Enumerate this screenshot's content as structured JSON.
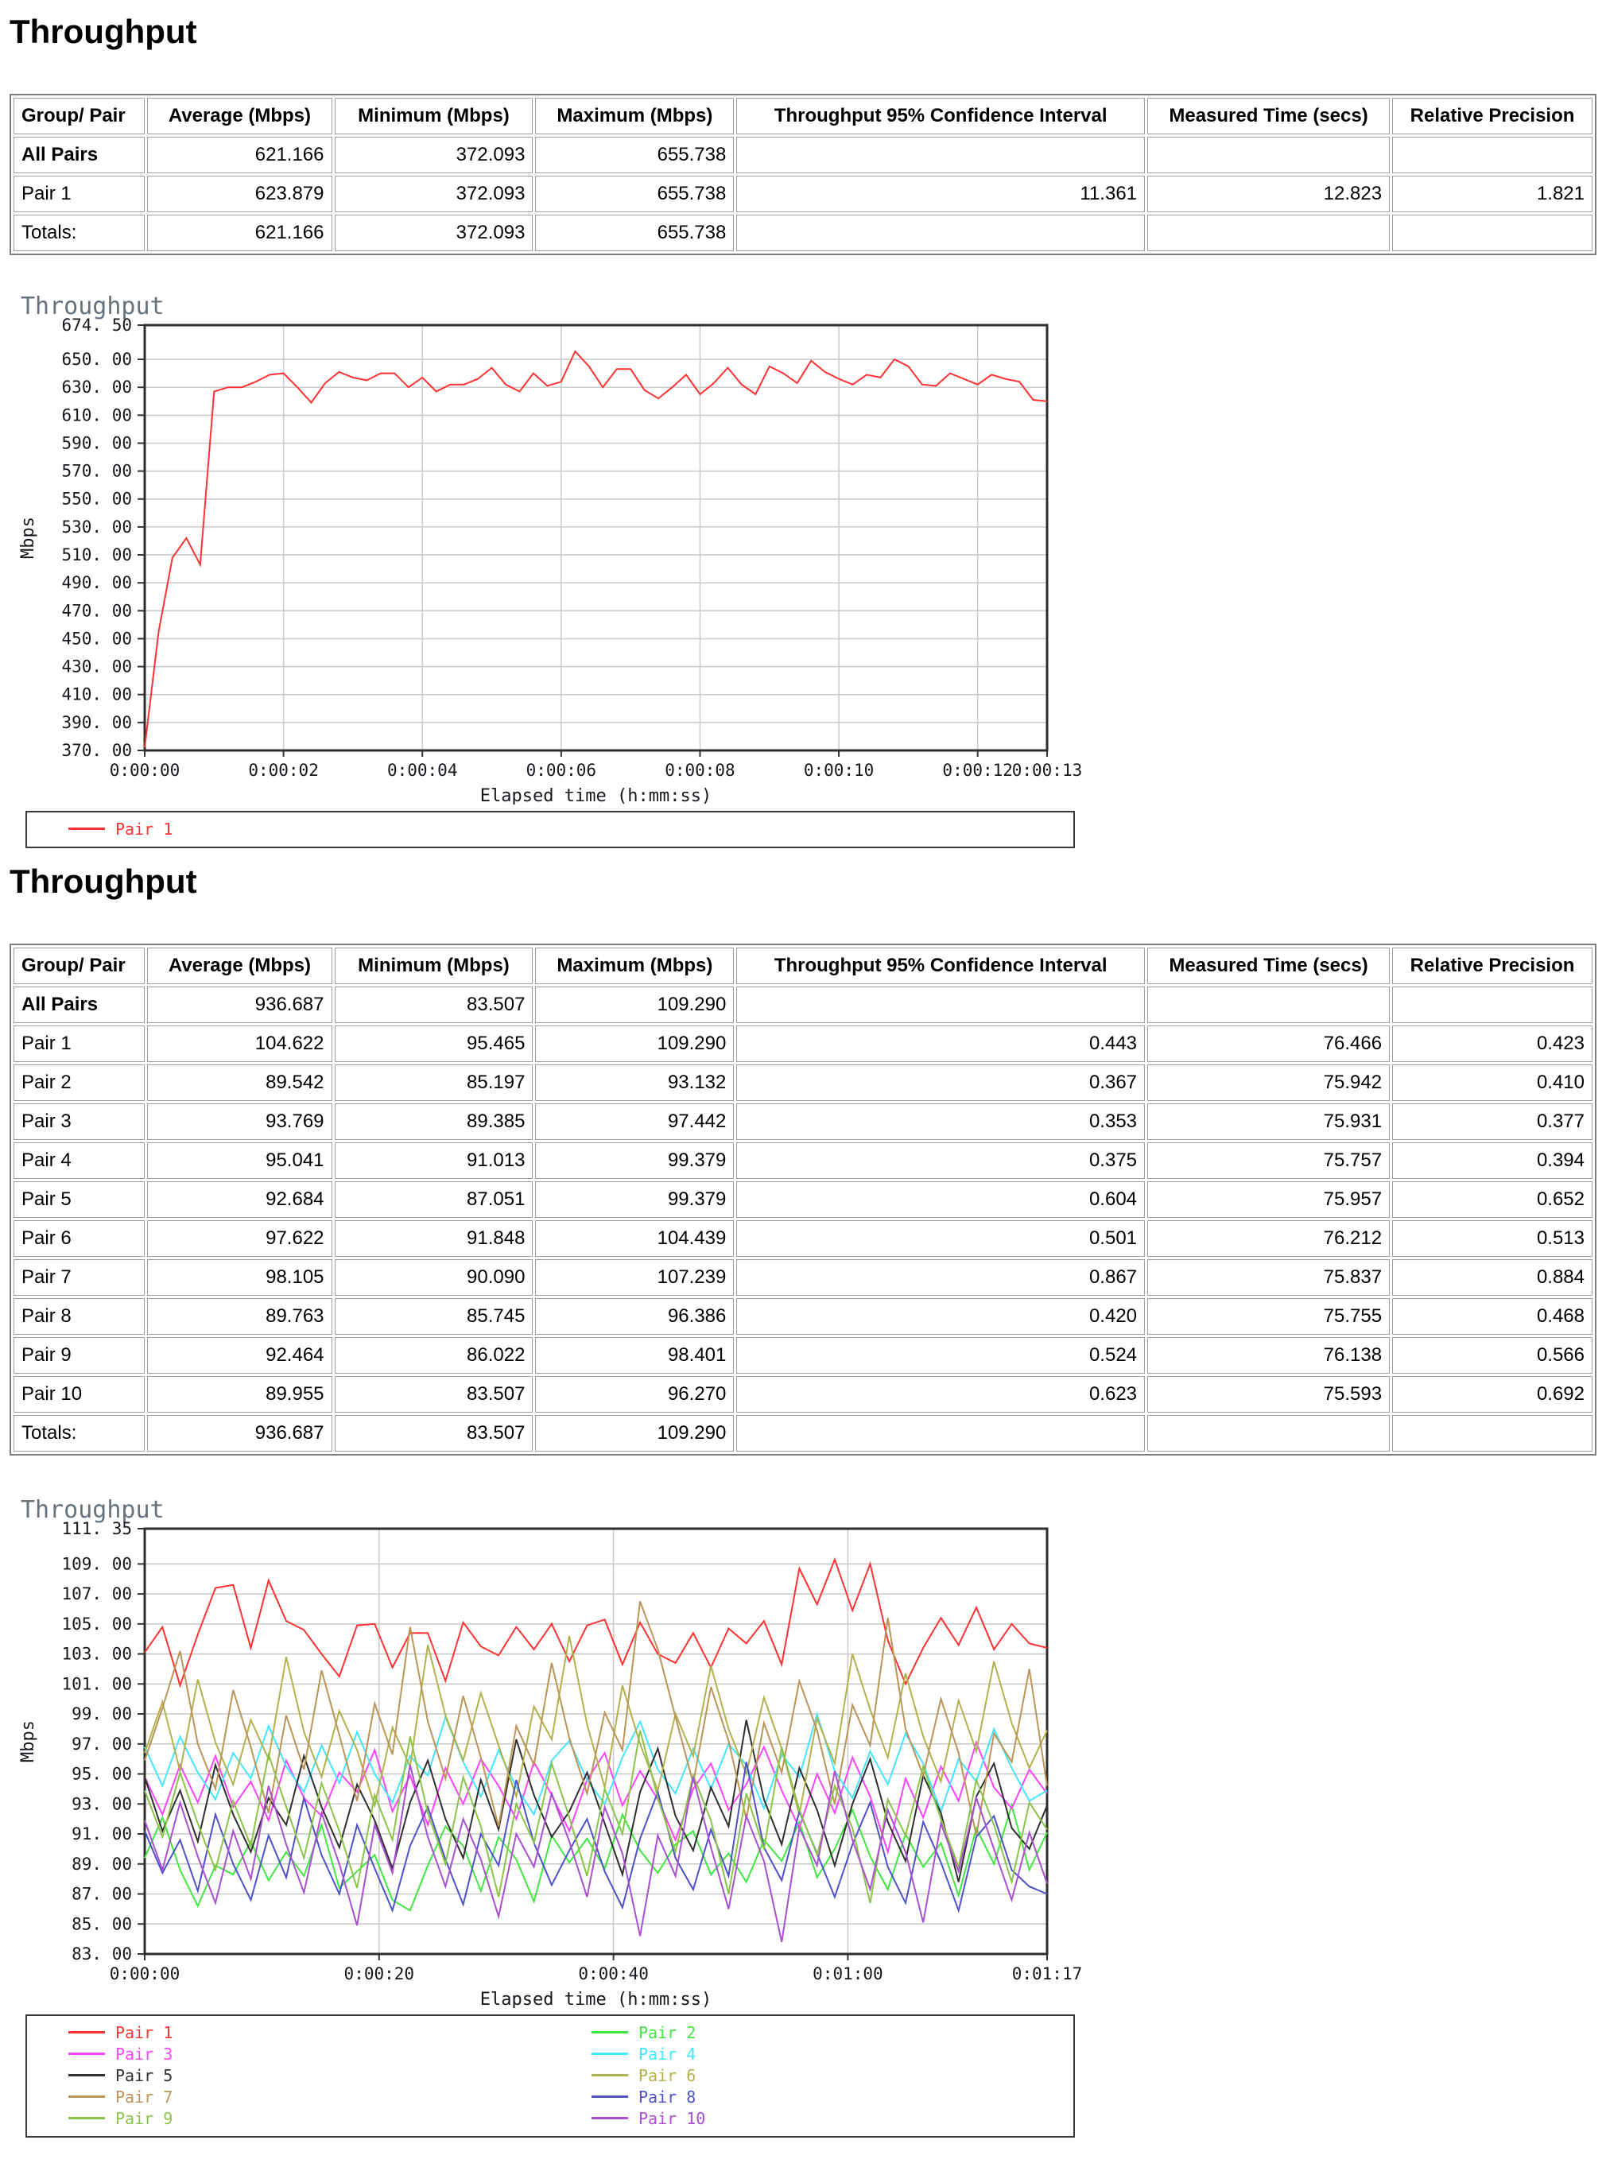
{
  "headings": {
    "section1": "Throughput",
    "section2": "Throughput"
  },
  "table1": {
    "headers": [
      "Group/ Pair",
      "Average (Mbps)",
      "Minimum (Mbps)",
      "Maximum (Mbps)",
      "Throughput 95% Confidence Interval",
      "Measured Time (secs)",
      "Relative Precision"
    ],
    "rows": [
      {
        "label": "All Pairs",
        "bold": true,
        "cells": [
          "621.166",
          "372.093",
          "655.738",
          "",
          "",
          ""
        ]
      },
      {
        "label": "Pair 1",
        "cells": [
          "623.879",
          "372.093",
          "655.738",
          "11.361",
          "12.823",
          "1.821"
        ]
      },
      {
        "label": "Totals:",
        "cells": [
          "621.166",
          "372.093",
          "655.738",
          "",
          "",
          ""
        ]
      }
    ]
  },
  "table2": {
    "headers": [
      "Group/ Pair",
      "Average (Mbps)",
      "Minimum (Mbps)",
      "Maximum (Mbps)",
      "Throughput 95% Confidence Interval",
      "Measured Time (secs)",
      "Relative Precision"
    ],
    "rows": [
      {
        "label": "All Pairs",
        "bold": true,
        "cells": [
          "936.687",
          "83.507",
          "109.290",
          "",
          "",
          ""
        ]
      },
      {
        "label": "Pair 1",
        "cells": [
          "104.622",
          "95.465",
          "109.290",
          "0.443",
          "76.466",
          "0.423"
        ]
      },
      {
        "label": "Pair 2",
        "cells": [
          "89.542",
          "85.197",
          "93.132",
          "0.367",
          "75.942",
          "0.410"
        ]
      },
      {
        "label": "Pair 3",
        "cells": [
          "93.769",
          "89.385",
          "97.442",
          "0.353",
          "75.931",
          "0.377"
        ]
      },
      {
        "label": "Pair 4",
        "cells": [
          "95.041",
          "91.013",
          "99.379",
          "0.375",
          "75.757",
          "0.394"
        ]
      },
      {
        "label": "Pair 5",
        "cells": [
          "92.684",
          "87.051",
          "99.379",
          "0.604",
          "75.957",
          "0.652"
        ]
      },
      {
        "label": "Pair 6",
        "cells": [
          "97.622",
          "91.848",
          "104.439",
          "0.501",
          "76.212",
          "0.513"
        ]
      },
      {
        "label": "Pair 7",
        "cells": [
          "98.105",
          "90.090",
          "107.239",
          "0.867",
          "75.837",
          "0.884"
        ]
      },
      {
        "label": "Pair 8",
        "cells": [
          "89.763",
          "85.745",
          "96.386",
          "0.420",
          "75.755",
          "0.468"
        ]
      },
      {
        "label": "Pair 9",
        "cells": [
          "92.464",
          "86.022",
          "98.401",
          "0.524",
          "76.138",
          "0.566"
        ]
      },
      {
        "label": "Pair 10",
        "cells": [
          "89.955",
          "83.507",
          "96.270",
          "0.623",
          "75.593",
          "0.692"
        ]
      },
      {
        "label": "Totals:",
        "cells": [
          "936.687",
          "83.507",
          "109.290",
          "",
          "",
          ""
        ]
      }
    ]
  },
  "chart_data": [
    {
      "type": "line",
      "title": "Throughput",
      "ylabel": "Mbps",
      "xlabel": "Elapsed time (h:mm:ss)",
      "ylim": [
        370.0,
        674.5
      ],
      "xlim": [
        0,
        13
      ],
      "grid": true,
      "legend_position": "bottom",
      "y_ticks": [
        {
          "v": 674.5,
          "label": "674. 50"
        },
        {
          "v": 650,
          "label": "650. 00"
        },
        {
          "v": 630,
          "label": "630. 00"
        },
        {
          "v": 610,
          "label": "610. 00"
        },
        {
          "v": 590,
          "label": "590. 00"
        },
        {
          "v": 570,
          "label": "570. 00"
        },
        {
          "v": 550,
          "label": "550. 00"
        },
        {
          "v": 530,
          "label": "530. 00"
        },
        {
          "v": 510,
          "label": "510. 00"
        },
        {
          "v": 490,
          "label": "490. 00"
        },
        {
          "v": 470,
          "label": "470. 00"
        },
        {
          "v": 450,
          "label": "450. 00"
        },
        {
          "v": 430,
          "label": "430. 00"
        },
        {
          "v": 410,
          "label": "410. 00"
        },
        {
          "v": 390,
          "label": "390. 00"
        },
        {
          "v": 370,
          "label": "370. 00"
        }
      ],
      "x_ticks": [
        {
          "v": 0,
          "label": "0:00:00"
        },
        {
          "v": 2,
          "label": "0:00:02"
        },
        {
          "v": 4,
          "label": "0:00:04"
        },
        {
          "v": 6,
          "label": "0:00:06"
        },
        {
          "v": 8,
          "label": "0:00:08"
        },
        {
          "v": 10,
          "label": "0:00:10"
        },
        {
          "v": 12,
          "label": "0:00:12"
        },
        {
          "v": 13,
          "label": "0:00:13"
        }
      ],
      "series": [
        {
          "name": "Pair 1",
          "color": "#ff3333",
          "values": [
            372.1,
            455,
            508,
            522,
            503,
            627,
            630,
            630,
            634,
            639,
            640,
            630,
            619,
            633,
            641,
            637,
            635,
            640,
            640,
            630,
            637,
            627,
            632,
            632,
            636,
            644,
            632,
            627,
            640,
            631,
            634,
            655.7,
            645,
            630,
            643,
            643,
            628,
            622,
            630,
            639,
            625,
            633,
            644,
            632,
            625,
            645,
            640,
            633,
            649,
            641,
            636,
            632,
            639,
            637,
            650,
            645,
            632,
            631,
            640,
            636,
            632,
            639,
            636,
            634,
            621,
            620
          ]
        }
      ]
    },
    {
      "type": "line",
      "title": "Throughput",
      "ylabel": "Mbps",
      "xlabel": "Elapsed time (h:mm:ss)",
      "ylim": [
        83.0,
        111.35
      ],
      "xlim": [
        0,
        77
      ],
      "grid": true,
      "legend_position": "bottom",
      "y_ticks": [
        {
          "v": 111.35,
          "label": "111. 35"
        },
        {
          "v": 109,
          "label": "109. 00"
        },
        {
          "v": 107,
          "label": "107. 00"
        },
        {
          "v": 105,
          "label": "105. 00"
        },
        {
          "v": 103,
          "label": "103. 00"
        },
        {
          "v": 101,
          "label": "101. 00"
        },
        {
          "v": 99,
          "label": "99. 00"
        },
        {
          "v": 97,
          "label": "97. 00"
        },
        {
          "v": 95,
          "label": "95. 00"
        },
        {
          "v": 93,
          "label": "93. 00"
        },
        {
          "v": 91,
          "label": "91. 00"
        },
        {
          "v": 89,
          "label": "89. 00"
        },
        {
          "v": 87,
          "label": "87. 00"
        },
        {
          "v": 85,
          "label": "85. 00"
        },
        {
          "v": 83,
          "label": "83. 00"
        }
      ],
      "x_ticks": [
        {
          "v": 0,
          "label": "0:00:00"
        },
        {
          "v": 20,
          "label": "0:00:20"
        },
        {
          "v": 40,
          "label": "0:00:40"
        },
        {
          "v": 60,
          "label": "0:01:00"
        },
        {
          "v": 77,
          "label": "0:01:17"
        }
      ],
      "series": [
        {
          "name": "Pair 1",
          "color": "#ff3333",
          "values": [
            103.1,
            104.8,
            100.9,
            104.3,
            107.4,
            107.6,
            103.4,
            107.9,
            105.2,
            104.6,
            103.0,
            101.5,
            104.9,
            105.0,
            102.1,
            104.4,
            104.4,
            101.2,
            105.1,
            103.5,
            102.9,
            104.8,
            103.3,
            105.0,
            102.5,
            104.9,
            105.3,
            102.3,
            105.1,
            103.0,
            102.4,
            104.4,
            102.1,
            104.7,
            103.7,
            105.2,
            102.3,
            108.7,
            106.3,
            109.3,
            105.9,
            109.0,
            103.9,
            101.0,
            103.4,
            105.4,
            103.6,
            106.1,
            103.3,
            105.0,
            103.7,
            103.4
          ]
        },
        {
          "name": "Pair 2",
          "color": "#42e842",
          "values": [
            89.4,
            92.1,
            88.6,
            86.2,
            88.9,
            88.3,
            90.5,
            87.9,
            89.8,
            88.2,
            91.6,
            87.4,
            88.5,
            89.6,
            86.6,
            85.9,
            88.9,
            91.5,
            90.2,
            87.2,
            90.8,
            89.3,
            86.5,
            90.9,
            89.1,
            90.7,
            88.7,
            92.3,
            89.9,
            88.4,
            90.3,
            91.2,
            88.3,
            89.7,
            87.8,
            90.6,
            89.2,
            91.8,
            88.1,
            90.0,
            92.6,
            89.5,
            87.3,
            91.0,
            88.8,
            90.4,
            86.9,
            91.4,
            89.0,
            92.9,
            88.6,
            91.1
          ]
        },
        {
          "name": "Pair 3",
          "color": "#ff44ff",
          "values": [
            94.8,
            92.3,
            95.6,
            93.1,
            96.2,
            92.8,
            94.5,
            91.9,
            95.9,
            93.4,
            92.2,
            95.1,
            93.8,
            96.6,
            92.5,
            94.9,
            91.6,
            95.4,
            93.0,
            96.0,
            94.2,
            92.0,
            95.8,
            93.6,
            91.2,
            94.6,
            96.4,
            92.9,
            95.2,
            93.3,
            90.6,
            94.0,
            95.7,
            92.6,
            94.3,
            96.8,
            93.9,
            91.4,
            95.0,
            92.4,
            96.1,
            93.5,
            89.8,
            94.7,
            92.1,
            95.5,
            93.2,
            97.1,
            94.1,
            92.7,
            95.3,
            93.7
          ]
        },
        {
          "name": "Pair 4",
          "color": "#45e6ff",
          "values": [
            96.8,
            94.2,
            97.5,
            95.1,
            93.3,
            96.4,
            94.7,
            98.2,
            95.5,
            93.8,
            96.9,
            94.4,
            97.8,
            95.0,
            93.1,
            96.2,
            94.9,
            98.8,
            95.8,
            93.5,
            96.6,
            94.1,
            92.3,
            95.9,
            97.2,
            94.6,
            93.0,
            96.1,
            98.5,
            95.3,
            93.7,
            96.7,
            94.0,
            97.0,
            95.6,
            92.7,
            96.3,
            94.8,
            99.0,
            95.2,
            93.4,
            96.5,
            94.3,
            97.7,
            95.7,
            92.5,
            96.0,
            94.5,
            98.0,
            95.4,
            93.2,
            93.9
          ]
        },
        {
          "name": "Pair 5",
          "color": "#303030",
          "values": [
            94.8,
            91.2,
            93.9,
            90.5,
            95.6,
            92.3,
            89.8,
            93.4,
            91.6,
            96.2,
            92.8,
            90.1,
            94.3,
            91.9,
            88.7,
            93.1,
            95.9,
            92.0,
            89.4,
            94.6,
            91.3,
            97.3,
            93.6,
            90.8,
            92.5,
            95.1,
            91.7,
            88.3,
            93.8,
            96.7,
            92.2,
            89.9,
            94.1,
            91.5,
            98.6,
            93.3,
            90.3,
            95.4,
            92.6,
            88.9,
            93.0,
            96.0,
            91.8,
            89.2,
            94.9,
            92.4,
            87.8,
            93.5,
            95.7,
            91.4,
            90.0,
            92.9
          ]
        },
        {
          "name": "Pair 6",
          "color": "#b2b24c",
          "values": [
            96.4,
            99.8,
            95.2,
            101.3,
            97.1,
            94.3,
            98.6,
            96.0,
            102.8,
            97.8,
            94.8,
            99.2,
            96.6,
            92.9,
            98.1,
            95.5,
            103.6,
            98.9,
            95.9,
            100.4,
            96.9,
            93.5,
            99.5,
            97.3,
            104.2,
            98.3,
            94.1,
            100.9,
            97.0,
            93.9,
            99.0,
            96.2,
            102.2,
            98.0,
            95.0,
            100.1,
            96.7,
            92.3,
            98.7,
            95.7,
            103.0,
            99.3,
            96.1,
            101.7,
            97.5,
            94.5,
            99.9,
            96.5,
            102.5,
            98.4,
            95.4,
            97.9
          ]
        },
        {
          "name": "Pair 7",
          "color": "#bd9457",
          "values": [
            95.9,
            99.4,
            103.2,
            97.0,
            94.0,
            100.6,
            96.8,
            92.4,
            98.9,
            95.3,
            101.9,
            97.6,
            93.2,
            99.7,
            96.3,
            104.8,
            98.5,
            94.7,
            100.2,
            96.1,
            91.5,
            98.2,
            95.6,
            102.4,
            97.4,
            93.7,
            99.1,
            96.6,
            106.5,
            103.3,
            98.8,
            94.4,
            100.8,
            97.2,
            92.0,
            98.4,
            95.1,
            101.2,
            97.9,
            93.0,
            99.6,
            96.9,
            105.4,
            98.0,
            94.9,
            100.0,
            96.4,
            90.9,
            97.7,
            95.8,
            102.0,
            94.2
          ]
        },
        {
          "name": "Pair 8",
          "color": "#4f52c8",
          "values": [
            91.2,
            88.4,
            90.6,
            87.2,
            92.3,
            89.0,
            86.6,
            90.9,
            88.1,
            93.4,
            89.6,
            87.0,
            91.6,
            88.7,
            85.9,
            90.2,
            92.8,
            89.3,
            86.3,
            91.0,
            88.9,
            94.6,
            90.4,
            87.6,
            89.9,
            92.0,
            88.5,
            86.1,
            90.7,
            93.8,
            89.4,
            87.3,
            91.3,
            88.2,
            95.8,
            90.1,
            87.9,
            92.5,
            89.7,
            86.8,
            90.3,
            93.1,
            88.8,
            86.4,
            91.8,
            89.1,
            85.9,
            90.8,
            92.2,
            88.6,
            87.5,
            87.0
          ]
        },
        {
          "name": "Pair 9",
          "color": "#8cc44a",
          "values": [
            93.9,
            90.8,
            95.1,
            91.7,
            88.6,
            93.2,
            90.2,
            96.3,
            92.8,
            89.4,
            94.4,
            91.2,
            87.4,
            93.6,
            90.6,
            97.5,
            92.4,
            89.0,
            94.8,
            91.5,
            86.8,
            93.0,
            90.4,
            95.7,
            92.1,
            88.2,
            94.0,
            91.0,
            97.9,
            93.4,
            89.8,
            94.9,
            91.9,
            87.0,
            93.7,
            90.0,
            96.8,
            92.6,
            89.6,
            94.2,
            91.4,
            86.4,
            93.3,
            90.9,
            95.5,
            92.0,
            88.8,
            94.6,
            91.6,
            87.8,
            93.1,
            91.3
          ]
        },
        {
          "name": "Pair 10",
          "color": "#aa4fd0",
          "values": [
            91.9,
            88.6,
            93.1,
            89.5,
            86.4,
            91.2,
            88.0,
            94.2,
            90.3,
            87.1,
            92.4,
            89.0,
            84.9,
            91.6,
            88.4,
            95.6,
            90.8,
            87.5,
            92.0,
            89.3,
            85.5,
            91.0,
            88.8,
            93.7,
            90.5,
            86.8,
            92.8,
            89.7,
            84.2,
            90.9,
            88.2,
            94.8,
            90.1,
            86.0,
            92.2,
            89.2,
            83.8,
            91.4,
            88.9,
            95.2,
            90.6,
            87.3,
            92.6,
            89.8,
            85.1,
            91.7,
            88.5,
            93.4,
            90.0,
            86.6,
            91.1,
            87.7
          ]
        }
      ]
    }
  ]
}
